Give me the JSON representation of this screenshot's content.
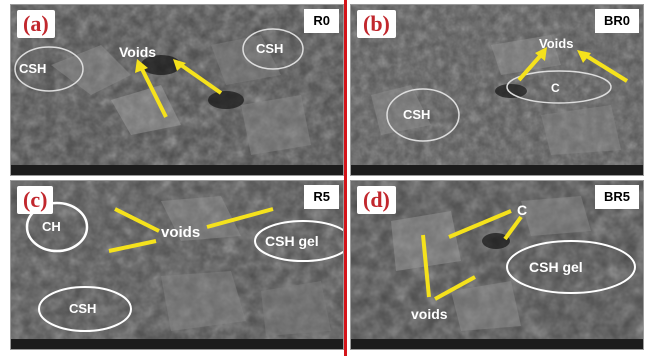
{
  "panels": {
    "a": {
      "letter": "(a)",
      "tag": "R0",
      "labels": {
        "voids": "Voids",
        "csh_left": "CSH",
        "csh_right": "CSH"
      }
    },
    "b": {
      "letter": "(b)",
      "tag": "BR0",
      "labels": {
        "voids": "Voids",
        "c": "C",
        "csh": "CSH"
      }
    },
    "c": {
      "letter": "(c)",
      "tag": "R5",
      "labels": {
        "ch": "CH",
        "voids": "voids",
        "csh_gel": "CSH gel",
        "csh": "CSH"
      }
    },
    "d": {
      "letter": "(d)",
      "tag": "BR5",
      "labels": {
        "c": "C",
        "csh_gel": "CSH gel",
        "voids": "voids"
      }
    }
  },
  "colors": {
    "arrow": "#f5e21c",
    "separator": "#d4141a",
    "letter": "#c1272d"
  }
}
